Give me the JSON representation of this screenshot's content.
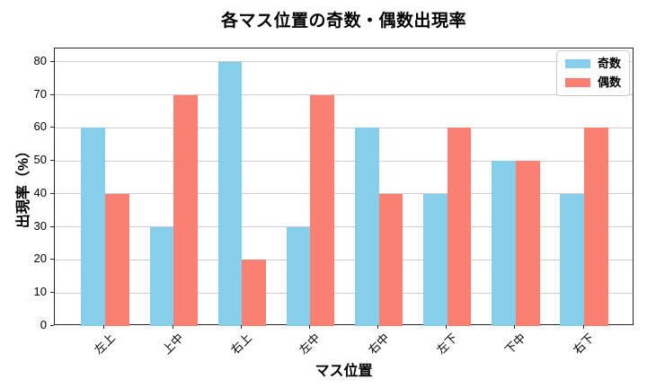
{
  "title": "各マス位置の奇数・偶数出現率",
  "chart_data": {
    "type": "bar",
    "title": "各マス位置の奇数・偶数出現率",
    "xlabel": "マス位置",
    "ylabel": "出現率（%）",
    "categories": [
      "左上",
      "上中",
      "右上",
      "左中",
      "右中",
      "左下",
      "下中",
      "右下"
    ],
    "series": [
      {
        "name": "奇数",
        "color": "#87CEEB",
        "values": [
          60,
          30,
          80,
          30,
          60,
          40,
          50,
          40
        ]
      },
      {
        "name": "偶数",
        "color": "#FA8072",
        "values": [
          40,
          70,
          20,
          70,
          40,
          60,
          50,
          60
        ]
      }
    ],
    "ylim": [
      0,
      84
    ],
    "yticks": [
      0,
      10,
      20,
      30,
      40,
      50,
      60,
      70,
      80
    ],
    "bar_width": 0.35,
    "grid": "y",
    "grid_color": "#cccccc",
    "legend_position": "upper right"
  }
}
